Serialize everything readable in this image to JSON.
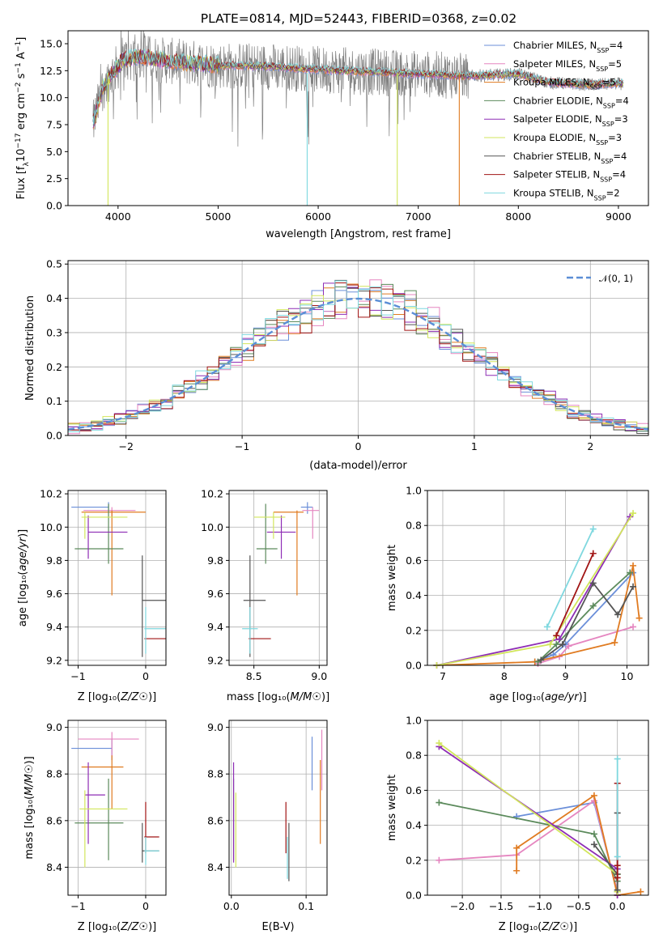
{
  "figure_title": "PLATE=0814, MJD=52443, FIBERID=0368, z=0.02",
  "colors": {
    "Chabrier MILES": "#6b8fd9",
    "Salpeter MILES": "#e586c0",
    "Kroupa MILES": "#e07b21",
    "Chabrier ELODIE": "#5b8a5b",
    "Salpeter ELODIE": "#8e2db5",
    "Kroupa ELODIE": "#d2e65c",
    "Chabrier STELIB": "#555555",
    "Salpeter STELIB": "#a11515",
    "Kroupa STELIB": "#7fd8df",
    "observed": "#808080",
    "gaussian": "#5b8ed6"
  },
  "chart_data": [
    {
      "id": "spectrum",
      "type": "line",
      "title": "PLATE=0814, MJD=52443, FIBERID=0368, z=0.02",
      "xlabel": "wavelength [Angstrom, rest frame]",
      "ylabel": "Flux [f_λ 10^-17 erg cm^-2 s^-1 A^-1]",
      "xlim": [
        3500,
        9300
      ],
      "ylim": [
        0,
        16.2
      ],
      "xticks": [
        4000,
        5000,
        6000,
        7000,
        8000,
        9000
      ],
      "yticks": [
        "0.0",
        "2.5",
        "5.0",
        "7.5",
        "10.0",
        "12.5",
        "15.0"
      ],
      "legend_position": "top-right",
      "legend": [
        {
          "name": "Chabrier MILES",
          "nssp": "4"
        },
        {
          "name": "Salpeter MILES",
          "nssp": "5"
        },
        {
          "name": "Kroupa MILES",
          "nssp": "5"
        },
        {
          "name": "Chabrier ELODIE",
          "nssp": "4"
        },
        {
          "name": "Salpeter ELODIE",
          "nssp": "3"
        },
        {
          "name": "Kroupa ELODIE",
          "nssp": "3"
        },
        {
          "name": "Chabrier STELIB",
          "nssp": "4"
        },
        {
          "name": "Salpeter STELIB",
          "nssp": "4"
        },
        {
          "name": "Kroupa STELIB",
          "nssp": "2"
        }
      ],
      "observed_range": [
        3750,
        9050
      ],
      "continuum": [
        [
          3750,
          7.5
        ],
        [
          3850,
          11.0
        ],
        [
          3950,
          12.3
        ],
        [
          4050,
          13.5
        ],
        [
          4200,
          13.8
        ],
        [
          4500,
          13.4
        ],
        [
          5000,
          13.0
        ],
        [
          5500,
          12.9
        ],
        [
          6000,
          12.6
        ],
        [
          6500,
          12.4
        ],
        [
          7000,
          12.2
        ],
        [
          7500,
          12.0
        ],
        [
          8000,
          12.2
        ],
        [
          8300,
          11.4
        ],
        [
          8700,
          11.2
        ],
        [
          9050,
          11.3
        ]
      ],
      "model_dropouts": [
        {
          "series": "Kroupa ELODIE",
          "x": 3900
        },
        {
          "series": "Kroupa STELIB",
          "x": 5890
        },
        {
          "series": "Kroupa ELODIE",
          "x": 6790
        },
        {
          "series": "Kroupa MILES",
          "x": 7410
        }
      ]
    },
    {
      "id": "residuals",
      "type": "histogram",
      "xlabel": "(data-model)/error",
      "ylabel": "Normed distribution",
      "xlim": [
        -2.5,
        2.5
      ],
      "ylim": [
        0,
        0.51
      ],
      "xticks": [
        -2,
        -1,
        0,
        1,
        2
      ],
      "yticks": [
        "0.0",
        "0.1",
        "0.2",
        "0.3",
        "0.4",
        "0.5"
      ],
      "reference_label": "𝒩(0, 1)",
      "reference_mu": 0,
      "reference_sigma": 1,
      "bin_width": 0.1
    },
    {
      "id": "age-vs-Z",
      "type": "errorbar",
      "xlabel": "Z [log₁₀(Z/Z☉)]",
      "ylabel": "age  [log₁₀(age/yr)]",
      "xlim": [
        -1.15,
        0.3
      ],
      "ylim": [
        9.17,
        10.22
      ],
      "xticks": [
        "−1",
        "0"
      ],
      "xtick_values": [
        -1,
        0
      ],
      "yticks": [
        "9.2",
        "9.4",
        "9.6",
        "9.8",
        "10.0",
        "10.2"
      ],
      "ytick_values": [
        9.2,
        9.4,
        9.6,
        9.8,
        10.0,
        10.2
      ],
      "points": [
        {
          "series": "Chabrier MILES",
          "x": -0.55,
          "xlo": -1.1,
          "xhi": -0.55,
          "y": 10.12,
          "ylo": 10.1,
          "yhi": 10.15
        },
        {
          "series": "Salpeter MILES",
          "x": -0.5,
          "xlo": -0.92,
          "xhi": -0.15,
          "y": 10.1,
          "ylo": 10.06,
          "yhi": 10.12
        },
        {
          "series": "Kroupa MILES",
          "x": -0.5,
          "xlo": -0.95,
          "xhi": 0.0,
          "y": 10.09,
          "ylo": 9.59,
          "yhi": 10.1
        },
        {
          "series": "Chabrier ELODIE",
          "x": -0.55,
          "xlo": -1.05,
          "xhi": -0.33,
          "y": 9.87,
          "ylo": 9.78,
          "yhi": 10.14
        },
        {
          "series": "Salpeter ELODIE",
          "x": -0.85,
          "xlo": -0.85,
          "xhi": -0.27,
          "y": 9.97,
          "ylo": 9.81,
          "yhi": 10.07
        },
        {
          "series": "Kroupa ELODIE",
          "x": -0.9,
          "xlo": -0.95,
          "xhi": -0.27,
          "y": 10.06,
          "ylo": 9.93,
          "yhi": 10.09
        },
        {
          "series": "Chabrier STELIB",
          "x": -0.05,
          "xlo": -0.05,
          "xhi": 0.3,
          "y": 9.56,
          "ylo": 9.22,
          "yhi": 9.83
        },
        {
          "series": "Salpeter STELIB",
          "x": 0.0,
          "xlo": -0.02,
          "xhi": 0.3,
          "y": 9.33,
          "ylo": 9.33,
          "yhi": 9.33
        },
        {
          "series": "Kroupa STELIB",
          "x": 0.0,
          "xlo": -0.02,
          "xhi": 0.3,
          "y": 9.39,
          "ylo": 9.24,
          "yhi": 9.52
        }
      ]
    },
    {
      "id": "age-vs-mass",
      "type": "errorbar",
      "xlabel": "mass [log₁₀(M/M☉)]",
      "ylabel": "",
      "xlim": [
        8.31,
        9.06
      ],
      "ylim": [
        9.17,
        10.22
      ],
      "xticks": [
        "8.5",
        "9.0"
      ],
      "xtick_values": [
        8.5,
        9.0
      ],
      "yticks": [
        "9.2",
        "9.4",
        "9.6",
        "9.8",
        "10.0",
        "10.2"
      ],
      "ytick_values": [
        9.2,
        9.4,
        9.6,
        9.8,
        10.0,
        10.2
      ],
      "points": [
        {
          "series": "Chabrier MILES",
          "x": 8.91,
          "xlo": 8.86,
          "xhi": 8.95,
          "y": 10.12,
          "ylo": 10.08,
          "yhi": 10.15
        },
        {
          "series": "Salpeter MILES",
          "x": 8.95,
          "xlo": 8.87,
          "xhi": 9.0,
          "y": 10.1,
          "ylo": 9.93,
          "yhi": 10.12
        },
        {
          "series": "Kroupa MILES",
          "x": 8.83,
          "xlo": 8.65,
          "xhi": 8.88,
          "y": 10.09,
          "ylo": 9.59,
          "yhi": 10.1
        },
        {
          "series": "Chabrier ELODIE",
          "x": 8.59,
          "xlo": 8.52,
          "xhi": 8.68,
          "y": 9.87,
          "ylo": 9.78,
          "yhi": 10.14
        },
        {
          "series": "Salpeter ELODIE",
          "x": 8.71,
          "xlo": 8.6,
          "xhi": 8.82,
          "y": 9.97,
          "ylo": 9.81,
          "yhi": 10.07
        },
        {
          "series": "Kroupa ELODIE",
          "x": 8.65,
          "xlo": 8.5,
          "xhi": 8.74,
          "y": 10.06,
          "ylo": 9.93,
          "yhi": 10.09
        },
        {
          "series": "Chabrier STELIB",
          "x": 8.47,
          "xlo": 8.42,
          "xhi": 8.59,
          "y": 9.56,
          "ylo": 9.22,
          "yhi": 9.83
        },
        {
          "series": "Salpeter STELIB",
          "x": 8.53,
          "xlo": 8.46,
          "xhi": 8.63,
          "y": 9.33,
          "ylo": 9.33,
          "yhi": 9.33
        },
        {
          "series": "Kroupa STELIB",
          "x": 8.47,
          "xlo": 8.41,
          "xhi": 8.53,
          "y": 9.39,
          "ylo": 9.24,
          "yhi": 9.52
        }
      ]
    },
    {
      "id": "massweight-vs-age",
      "type": "line",
      "xlabel": "age  [log₁₀(age/yr)]",
      "ylabel": "mass weight",
      "xlim": [
        6.75,
        10.35
      ],
      "ylim": [
        0,
        1.0
      ],
      "xticks": [
        "7",
        "8",
        "9",
        "10"
      ],
      "xtick_values": [
        7,
        8,
        9,
        10
      ],
      "yticks": [
        "0.0",
        "0.2",
        "0.4",
        "0.6",
        "0.8",
        "1.0"
      ],
      "ytick_values": [
        0,
        0.2,
        0.4,
        0.6,
        0.8,
        1.0
      ],
      "series": [
        {
          "name": "Chabrier MILES",
          "x": [
            8.5,
            8.8,
            9.0,
            10.1
          ],
          "y": [
            0.02,
            0.06,
            0.12,
            0.53
          ]
        },
        {
          "name": "Salpeter MILES",
          "x": [
            8.55,
            8.9,
            9.05,
            10.1
          ],
          "y": [
            0.01,
            0.05,
            0.11,
            0.22
          ]
        },
        {
          "name": "Kroupa MILES",
          "x": [
            6.9,
            8.5,
            9.8,
            10.1,
            10.2
          ],
          "y": [
            0.0,
            0.02,
            0.13,
            0.57,
            0.27
          ]
        },
        {
          "name": "Chabrier ELODIE",
          "x": [
            8.55,
            8.85,
            9.45,
            10.05
          ],
          "y": [
            0.02,
            0.12,
            0.34,
            0.53
          ]
        },
        {
          "name": "Salpeter ELODIE",
          "x": [
            6.9,
            8.9,
            10.05
          ],
          "y": [
            0.0,
            0.15,
            0.85
          ]
        },
        {
          "name": "Kroupa ELODIE",
          "x": [
            6.9,
            8.75,
            10.1
          ],
          "y": [
            0.0,
            0.12,
            0.87
          ]
        },
        {
          "name": "Chabrier STELIB",
          "x": [
            8.6,
            8.95,
            9.45,
            9.85,
            10.1
          ],
          "y": [
            0.03,
            0.12,
            0.47,
            0.29,
            0.45
          ]
        },
        {
          "name": "Salpeter STELIB",
          "x": [
            8.85,
            9.45
          ],
          "y": [
            0.17,
            0.64
          ]
        },
        {
          "name": "Kroupa STELIB",
          "x": [
            8.7,
            9.45
          ],
          "y": [
            0.22,
            0.78
          ]
        }
      ]
    },
    {
      "id": "mass-vs-Z",
      "type": "errorbar",
      "xlabel": "Z [log₁₀(Z/Z☉)]",
      "ylabel": "mass [log₁₀(M/M☉)]",
      "xlim": [
        -1.15,
        0.3
      ],
      "ylim": [
        8.28,
        9.03
      ],
      "xticks": [
        "−1",
        "0"
      ],
      "xtick_values": [
        -1,
        0
      ],
      "yticks": [
        "8.4",
        "8.6",
        "8.8",
        "9.0"
      ],
      "ytick_values": [
        8.4,
        8.6,
        8.8,
        9.0
      ],
      "points": [
        {
          "series": "Chabrier MILES",
          "x": -0.5,
          "xlo": -1.1,
          "xhi": -0.5,
          "y": 8.91,
          "ylo": 8.86,
          "yhi": 8.95
        },
        {
          "series": "Salpeter MILES",
          "x": -0.5,
          "xlo": -1.0,
          "xhi": -0.1,
          "y": 8.95,
          "ylo": 8.87,
          "yhi": 8.98
        },
        {
          "series": "Kroupa MILES",
          "x": -0.5,
          "xlo": -0.95,
          "xhi": -0.33,
          "y": 8.83,
          "ylo": 8.65,
          "yhi": 8.88
        },
        {
          "series": "Chabrier ELODIE",
          "x": -0.55,
          "xlo": -1.05,
          "xhi": -0.33,
          "y": 8.59,
          "ylo": 8.43,
          "yhi": 8.78
        },
        {
          "series": "Salpeter ELODIE",
          "x": -0.85,
          "xlo": -0.9,
          "xhi": -0.6,
          "y": 8.71,
          "ylo": 8.5,
          "yhi": 8.85
        },
        {
          "series": "Kroupa ELODIE",
          "x": -0.9,
          "xlo": -0.98,
          "xhi": -0.27,
          "y": 8.65,
          "ylo": 8.4,
          "yhi": 8.73
        },
        {
          "series": "Chabrier STELIB",
          "x": -0.05,
          "xlo": -0.05,
          "xhi": 0.2,
          "y": 8.47,
          "ylo": 8.42,
          "yhi": 8.59
        },
        {
          "series": "Salpeter STELIB",
          "x": 0.0,
          "xlo": -0.02,
          "xhi": 0.2,
          "y": 8.53,
          "ylo": 8.46,
          "yhi": 8.68
        },
        {
          "series": "Kroupa STELIB",
          "x": 0.0,
          "xlo": -0.02,
          "xhi": 0.2,
          "y": 8.47,
          "ylo": 8.41,
          "yhi": 8.53
        }
      ]
    },
    {
      "id": "mass-vs-EBV",
      "type": "errorbar",
      "xlabel": "E(B-V)",
      "ylabel": "",
      "xlim": [
        -0.003,
        0.128
      ],
      "ylim": [
        8.28,
        9.03
      ],
      "xticks": [
        "0.0",
        "0.1"
      ],
      "xtick_values": [
        0.0,
        0.1
      ],
      "yticks": [
        "8.4",
        "8.6",
        "8.8",
        "9.0"
      ],
      "ytick_values": [
        8.4,
        8.6,
        8.8,
        9.0
      ],
      "points": [
        {
          "series": "Chabrier MILES",
          "x": 0.108,
          "xlo": 0.108,
          "xhi": 0.108,
          "y": 8.91,
          "ylo": 8.73,
          "yhi": 8.96
        },
        {
          "series": "Salpeter MILES",
          "x": 0.121,
          "xlo": 0.121,
          "xhi": 0.121,
          "y": 8.95,
          "ylo": 8.73,
          "yhi": 8.99
        },
        {
          "series": "Kroupa MILES",
          "x": 0.119,
          "xlo": 0.119,
          "xhi": 0.119,
          "y": 8.83,
          "ylo": 8.5,
          "yhi": 8.86
        },
        {
          "series": "Chabrier ELODIE",
          "x": 0.003,
          "xlo": 0.003,
          "xhi": 0.003,
          "y": 8.59,
          "ylo": 8.43,
          "yhi": 8.78
        },
        {
          "series": "Salpeter ELODIE",
          "x": 0.003,
          "xlo": 0.003,
          "xhi": 0.003,
          "y": 8.71,
          "ylo": 8.42,
          "yhi": 8.85
        },
        {
          "series": "Kroupa ELODIE",
          "x": 0.006,
          "xlo": 0.006,
          "xhi": 0.006,
          "y": 8.55,
          "ylo": 8.4,
          "yhi": 8.72
        },
        {
          "series": "Chabrier STELIB",
          "x": 0.077,
          "xlo": 0.077,
          "xhi": 0.077,
          "y": 8.47,
          "ylo": 8.34,
          "yhi": 8.59
        },
        {
          "series": "Salpeter STELIB",
          "x": 0.073,
          "xlo": 0.073,
          "xhi": 0.073,
          "y": 8.55,
          "ylo": 8.46,
          "yhi": 8.68
        },
        {
          "series": "Kroupa STELIB",
          "x": 0.075,
          "xlo": 0.075,
          "xhi": 0.075,
          "y": 8.45,
          "ylo": 8.35,
          "yhi": 8.53
        }
      ]
    },
    {
      "id": "massweight-vs-Z",
      "type": "line",
      "xlabel": "Z [log₁₀(Z/Z☉)]",
      "ylabel": "mass weight",
      "xlim": [
        -2.45,
        0.4
      ],
      "ylim": [
        0,
        1.0
      ],
      "xticks": [
        "−2.0",
        "−1.5",
        "−1.0",
        "−0.5",
        "0.0"
      ],
      "xtick_values": [
        -2.0,
        -1.5,
        -1.0,
        -0.5,
        0.0
      ],
      "yticks": [
        "0.0",
        "0.2",
        "0.4",
        "0.6",
        "0.8",
        "1.0"
      ],
      "ytick_values": [
        0,
        0.2,
        0.4,
        0.6,
        0.8,
        1.0
      ],
      "series": [
        {
          "name": "Chabrier MILES",
          "x": [
            -1.3,
            -0.3,
            0.0,
            0.0
          ],
          "y": [
            0.45,
            0.53,
            0.02,
            0.0
          ]
        },
        {
          "name": "Salpeter MILES",
          "x": [
            -2.3,
            -1.3,
            -0.3,
            0.0,
            0.0
          ],
          "y": [
            0.2,
            0.23,
            0.54,
            0.02,
            0.0
          ]
        },
        {
          "name": "Kroupa MILES",
          "x": [
            -1.3,
            -1.3,
            -0.3,
            0.0,
            0.3
          ],
          "y": [
            0.14,
            0.27,
            0.57,
            0.0,
            0.02
          ]
        },
        {
          "name": "Chabrier ELODIE",
          "x": [
            -2.3,
            -0.3,
            0.0,
            0.0
          ],
          "y": [
            0.53,
            0.35,
            0.08,
            0.02
          ]
        },
        {
          "name": "Salpeter ELODIE",
          "x": [
            -2.3,
            0.0,
            0.0
          ],
          "y": [
            0.85,
            0.15,
            0.0
          ]
        },
        {
          "name": "Kroupa ELODIE",
          "x": [
            -2.3,
            0.0,
            0.0
          ],
          "y": [
            0.87,
            0.12,
            0.02
          ]
        },
        {
          "name": "Chabrier STELIB",
          "x": [
            -0.3,
            0.0,
            0.0,
            0.0
          ],
          "y": [
            0.29,
            0.12,
            0.47,
            0.03
          ]
        },
        {
          "name": "Salpeter STELIB",
          "x": [
            0.0,
            0.0,
            0.0
          ],
          "y": [
            0.64,
            0.17,
            0.1
          ]
        },
        {
          "name": "Kroupa STELIB",
          "x": [
            0.0,
            0.0
          ],
          "y": [
            0.78,
            0.22
          ]
        }
      ]
    }
  ]
}
